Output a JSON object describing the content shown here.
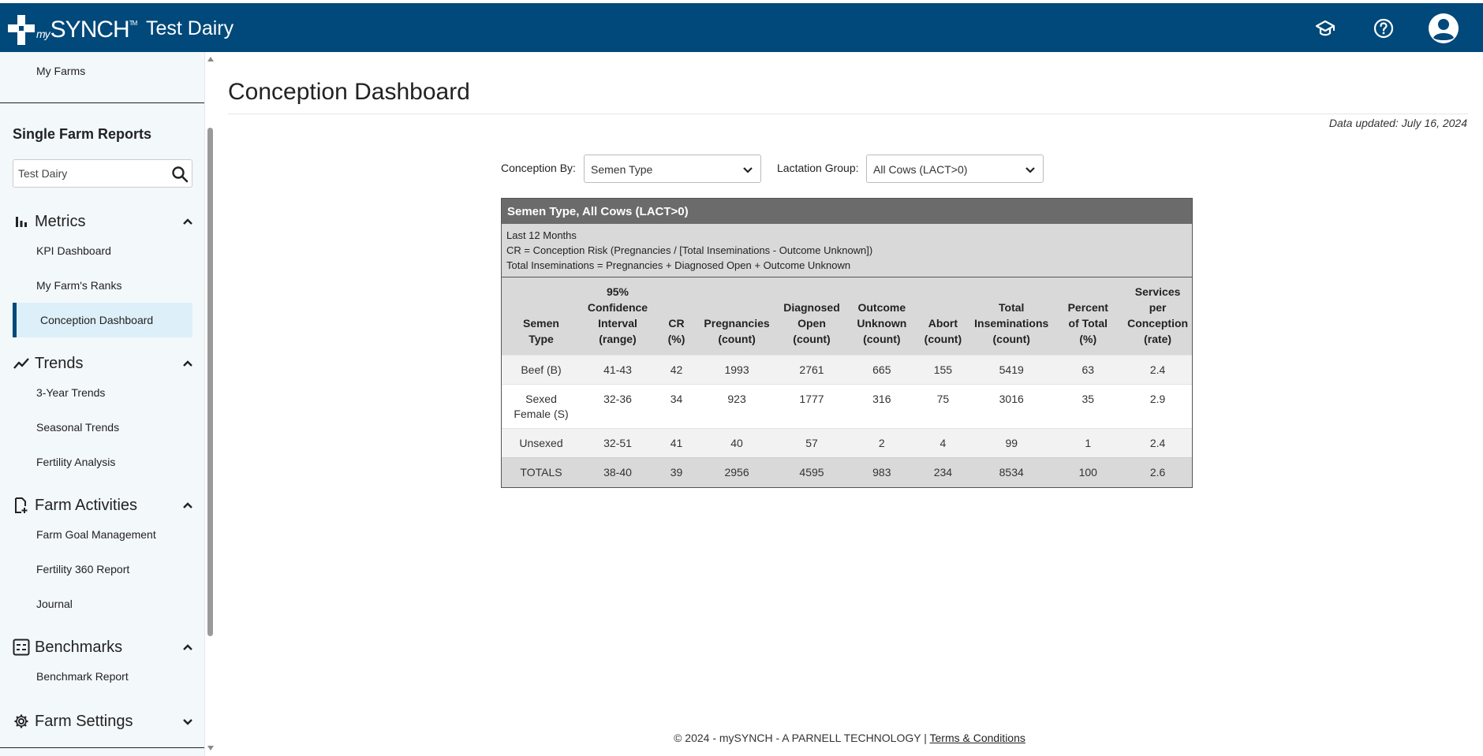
{
  "header": {
    "logo": {
      "prefix": "my",
      "name": "SYNCH",
      "mark": "TM"
    },
    "title": "Test Dairy",
    "icons": {
      "learn": "graduation-cap-icon",
      "help": "help-circle-icon",
      "account": "user-account-icon"
    }
  },
  "sidebar": {
    "my_farms": "My Farms",
    "heading": "Single Farm Reports",
    "search": {
      "value": "Test Dairy",
      "placeholder": ""
    },
    "sections": {
      "metrics": {
        "label": "Metrics",
        "items": [
          "KPI Dashboard",
          "My Farm's Ranks",
          "Conception Dashboard"
        ]
      },
      "trends": {
        "label": "Trends",
        "items": [
          "3-Year Trends",
          "Seasonal Trends",
          "Fertility Analysis"
        ]
      },
      "activities": {
        "label": "Farm Activities",
        "items": [
          "Farm Goal Management",
          "Fertility 360 Report",
          "Journal"
        ]
      },
      "benchmarks": {
        "label": "Benchmarks",
        "items": [
          "Benchmark Report"
        ]
      },
      "settings": {
        "label": "Farm Settings"
      }
    },
    "active": "Conception Dashboard"
  },
  "main": {
    "title": "Conception Dashboard",
    "updated": "Data updated: July 16, 2024",
    "filters": {
      "conception_by": {
        "label": "Conception By:",
        "value": "Semen Type"
      },
      "lactation_group": {
        "label": "Lactation Group:",
        "value": "All Cows (LACT>0)"
      }
    },
    "report": {
      "title": "Semen Type, All Cows (LACT>0)",
      "notes": [
        "Last 12 Months",
        "CR = Conception Risk (Pregnancies / [Total Inseminations - Outcome Unknown])",
        "Total Inseminations = Pregnancies + Diagnosed Open + Outcome Unknown"
      ],
      "columns": [
        [
          "Semen",
          "Type"
        ],
        [
          "95%",
          "Confidence",
          "Interval",
          "(range)"
        ],
        [
          "CR",
          "(%)"
        ],
        [
          "Pregnancies",
          "(count)"
        ],
        [
          "Diagnosed",
          "Open",
          "(count)"
        ],
        [
          "Outcome",
          "Unknown",
          "(count)"
        ],
        [
          "Abort",
          "(count)"
        ],
        [
          "Total",
          "Inseminations",
          "(count)"
        ],
        [
          "Percent",
          "of Total",
          "(%)"
        ],
        [
          "Services",
          "per",
          "Conception",
          "(rate)"
        ]
      ],
      "rows": [
        [
          "Beef (B)",
          "41-43",
          "42",
          "1993",
          "2761",
          "665",
          "155",
          "5419",
          "63",
          "2.4"
        ],
        [
          "Sexed Female (S)",
          "32-36",
          "34",
          "923",
          "1777",
          "316",
          "75",
          "3016",
          "35",
          "2.9"
        ],
        [
          "Unsexed",
          "32-51",
          "41",
          "40",
          "57",
          "2",
          "4",
          "99",
          "1",
          "2.4"
        ]
      ],
      "totals": [
        "TOTALS",
        "38-40",
        "39",
        "2956",
        "4595",
        "983",
        "234",
        "8534",
        "100",
        "2.6"
      ]
    }
  },
  "footer": {
    "text": "© 2024 - mySYNCH - A PARNELL TECHNOLOGY | ",
    "link": "Terms & Conditions"
  }
}
